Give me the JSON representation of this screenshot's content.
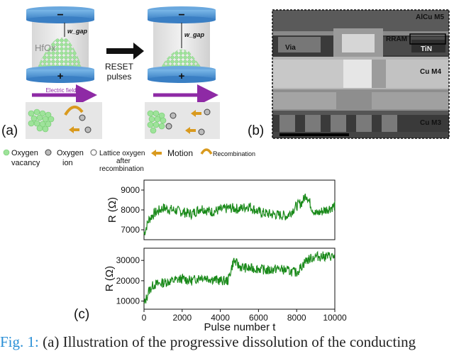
{
  "panel_a": {
    "label": "(a)",
    "oxide_label": "HfOx",
    "gap_label": "w_gap",
    "arrow_label_1": "RESET",
    "arrow_label_2": "pulses",
    "field_label": "Electric field",
    "minus": "−",
    "plus": "+"
  },
  "panel_b": {
    "label": "(b)",
    "labels": {
      "alcu": "AlCu M5",
      "rram": "RRAM",
      "tin": "TiN",
      "via": "Via",
      "m4": "Cu M4",
      "m3": "Cu M3"
    }
  },
  "legend": {
    "vacancy_1": "Oxygen",
    "vacancy_2": "vacancy",
    "ion_1": "Oxygen",
    "ion_2": "ion",
    "lattice_1": "Lattice oxygen",
    "lattice_2": "after",
    "lattice_3": "recombination",
    "motion": "Motion",
    "recombination": "Recombination",
    "colors": {
      "vacancy": "#9ee39a",
      "motion": "#d99a1e",
      "field": "#8e2aa5"
    }
  },
  "panel_c": {
    "label": "(c)"
  },
  "chart_data": [
    {
      "type": "line",
      "x_range": [
        0,
        10000
      ],
      "ylim": [
        6500,
        9500
      ],
      "yticks": [
        7000,
        8000,
        9000
      ],
      "ylabel": "R (Ω)",
      "xlabel": "",
      "color": "#1a8a1a",
      "x": [
        0,
        250,
        500,
        1000,
        1500,
        2000,
        2500,
        3000,
        3500,
        4000,
        4500,
        5000,
        5500,
        6000,
        6500,
        7000,
        7500,
        8000,
        8300,
        8500,
        8800,
        9000,
        9500,
        10000
      ],
      "values": [
        6800,
        7500,
        7800,
        8100,
        8000,
        7900,
        7800,
        8100,
        7900,
        8000,
        8100,
        8050,
        8200,
        7900,
        7800,
        7750,
        7700,
        8200,
        8400,
        8800,
        8100,
        7800,
        8000,
        8200
      ]
    },
    {
      "type": "line",
      "x_range": [
        0,
        10000
      ],
      "ylim": [
        6000,
        36000
      ],
      "yticks": [
        10000,
        20000,
        30000
      ],
      "ylabel": "R (Ω)",
      "xlabel": "Pulse number t",
      "xticks": [
        0,
        2000,
        4000,
        6000,
        8000,
        10000
      ],
      "color": "#1a8a1a",
      "x": [
        0,
        250,
        500,
        1000,
        1500,
        2000,
        2500,
        3000,
        3500,
        4000,
        4400,
        4700,
        5000,
        5500,
        6000,
        6500,
        7000,
        7500,
        8000,
        8500,
        9000,
        9500,
        10000
      ],
      "values": [
        8000,
        15000,
        18000,
        19000,
        20000,
        21000,
        20000,
        22000,
        21000,
        20000,
        20000,
        30000,
        27000,
        26000,
        26000,
        25000,
        26000,
        25000,
        24000,
        30000,
        32000,
        32000,
        32000
      ]
    }
  ],
  "caption": {
    "label": "Fig. 1:",
    "text": " (a) Illustration of the progressive dissolution of the conducting"
  }
}
